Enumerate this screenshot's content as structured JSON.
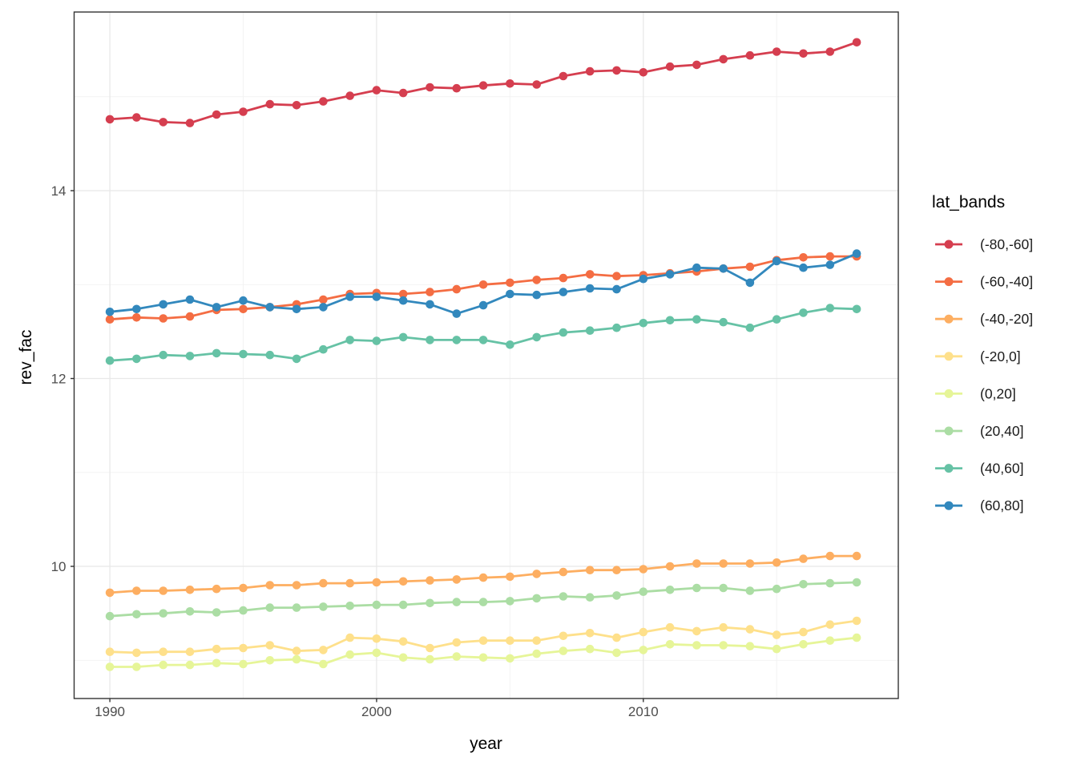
{
  "chart_data": {
    "type": "line",
    "x": [
      1990,
      1991,
      1992,
      1993,
      1994,
      1995,
      1996,
      1997,
      1998,
      1999,
      2000,
      2001,
      2002,
      2003,
      2004,
      2005,
      2006,
      2007,
      2008,
      2009,
      2010,
      2011,
      2012,
      2013,
      2014,
      2015,
      2016,
      2017,
      2018
    ],
    "series": [
      {
        "name": "(-80,-60]",
        "color": "#D53E4F",
        "values": [
          14.76,
          14.78,
          14.73,
          14.72,
          14.81,
          14.84,
          14.92,
          14.91,
          14.95,
          15.01,
          15.07,
          15.04,
          15.1,
          15.09,
          15.12,
          15.14,
          15.13,
          15.22,
          15.27,
          15.28,
          15.26,
          15.32,
          15.34,
          15.4,
          15.44,
          15.48,
          15.46,
          15.48,
          15.58
        ]
      },
      {
        "name": "(-60,-40]",
        "color": "#F46D43",
        "values": [
          12.63,
          12.65,
          12.64,
          12.66,
          12.73,
          12.74,
          12.76,
          12.79,
          12.84,
          12.9,
          12.91,
          12.9,
          12.92,
          12.95,
          13.0,
          13.02,
          13.05,
          13.07,
          13.11,
          13.09,
          13.1,
          13.12,
          13.14,
          13.17,
          13.19,
          13.26,
          13.29,
          13.3,
          13.3
        ]
      },
      {
        "name": "(-40,-20]",
        "color": "#FDAE61",
        "values": [
          9.72,
          9.74,
          9.74,
          9.75,
          9.76,
          9.77,
          9.8,
          9.8,
          9.82,
          9.82,
          9.83,
          9.84,
          9.85,
          9.86,
          9.88,
          9.89,
          9.92,
          9.94,
          9.96,
          9.96,
          9.97,
          10.0,
          10.03,
          10.03,
          10.03,
          10.04,
          10.08,
          10.11,
          10.11
        ]
      },
      {
        "name": "(-20,0]",
        "color": "#FEE08B",
        "values": [
          9.09,
          9.08,
          9.09,
          9.09,
          9.12,
          9.13,
          9.16,
          9.1,
          9.11,
          9.24,
          9.23,
          9.2,
          9.13,
          9.19,
          9.21,
          9.21,
          9.21,
          9.26,
          9.29,
          9.24,
          9.3,
          9.35,
          9.31,
          9.35,
          9.33,
          9.27,
          9.3,
          9.38,
          9.42
        ]
      },
      {
        "name": "(0,20]",
        "color": "#E6F598",
        "values": [
          8.93,
          8.93,
          8.95,
          8.95,
          8.97,
          8.96,
          9.0,
          9.01,
          8.96,
          9.06,
          9.08,
          9.03,
          9.01,
          9.04,
          9.03,
          9.02,
          9.07,
          9.1,
          9.12,
          9.08,
          9.11,
          9.17,
          9.16,
          9.16,
          9.15,
          9.12,
          9.17,
          9.21,
          9.24
        ]
      },
      {
        "name": "(20,40]",
        "color": "#ABDDA4",
        "values": [
          9.47,
          9.49,
          9.5,
          9.52,
          9.51,
          9.53,
          9.56,
          9.56,
          9.57,
          9.58,
          9.59,
          9.59,
          9.61,
          9.62,
          9.62,
          9.63,
          9.66,
          9.68,
          9.67,
          9.69,
          9.73,
          9.75,
          9.77,
          9.77,
          9.74,
          9.76,
          9.81,
          9.82,
          9.83
        ]
      },
      {
        "name": "(40,60]",
        "color": "#66C2A5",
        "values": [
          12.19,
          12.21,
          12.25,
          12.24,
          12.27,
          12.26,
          12.25,
          12.21,
          12.31,
          12.41,
          12.4,
          12.44,
          12.41,
          12.41,
          12.41,
          12.36,
          12.44,
          12.49,
          12.51,
          12.54,
          12.59,
          12.62,
          12.63,
          12.6,
          12.54,
          12.63,
          12.7,
          12.75,
          12.74
        ]
      },
      {
        "name": "(60,80]",
        "color": "#3288BD",
        "values": [
          12.71,
          12.74,
          12.79,
          12.84,
          12.76,
          12.83,
          12.76,
          12.74,
          12.76,
          12.87,
          12.87,
          12.83,
          12.79,
          12.69,
          12.78,
          12.9,
          12.89,
          12.92,
          12.96,
          12.95,
          13.06,
          13.11,
          13.18,
          13.17,
          13.02,
          13.25,
          13.18,
          13.21,
          13.33
        ]
      }
    ],
    "title": "",
    "xlabel": "year",
    "ylabel": "rev_fac",
    "legend_title": "lat_bands",
    "legend_position": "right",
    "grid": true,
    "xlim": [
      1988.66,
      2019.56
    ],
    "ylim": [
      8.593,
      15.902
    ],
    "x_ticks": [
      1990,
      2000,
      2010
    ],
    "y_ticks": [
      10,
      12,
      14
    ],
    "x_minor_ticks": [
      1995,
      2005,
      2015
    ],
    "y_minor_ticks": [
      9,
      11,
      13,
      15
    ],
    "style": {
      "panel_background": "#ffffff",
      "panel_border": "#333333",
      "grid_major": "#e8e8e8",
      "grid_minor": "#f2f2f2",
      "tick_color": "#333333",
      "tick_label_color": "#4d4d4d"
    }
  }
}
